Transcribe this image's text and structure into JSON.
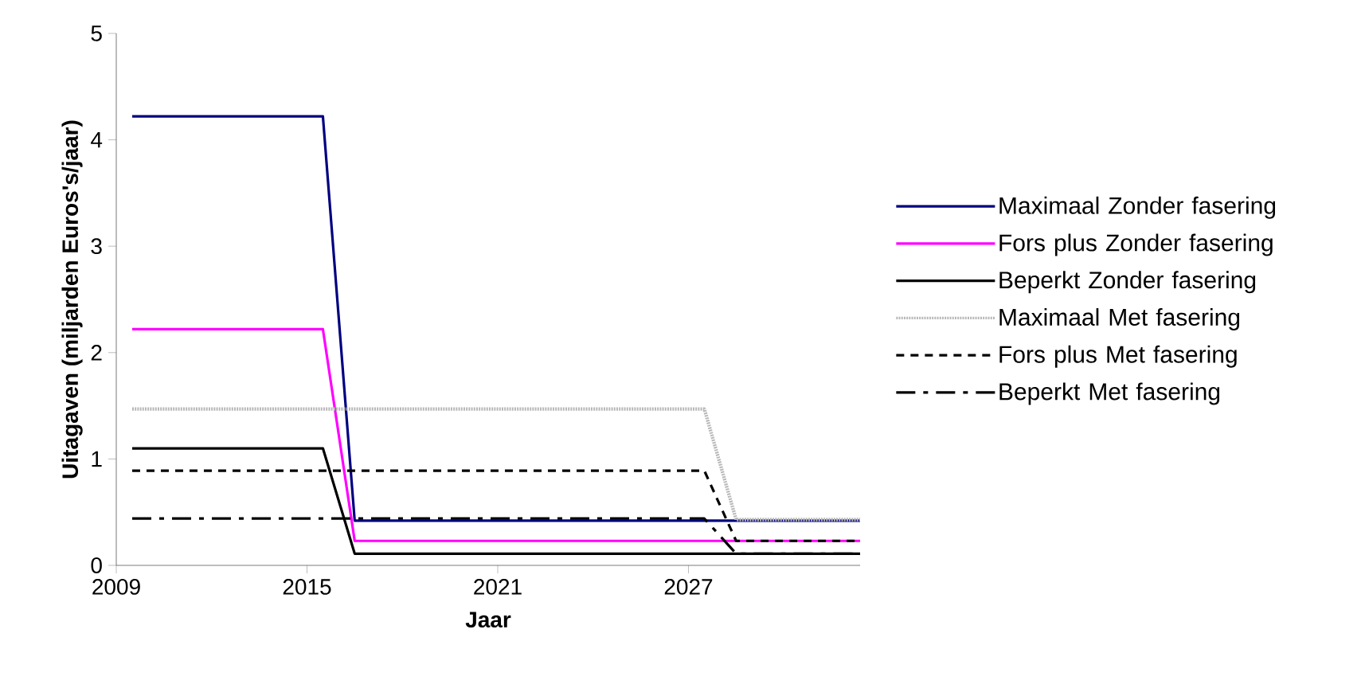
{
  "chart_data": {
    "type": "line",
    "xlabel": "Jaar",
    "ylabel": "Uitagaven (miljarden Euros's/jaar)",
    "xlim": [
      2009,
      2032.4
    ],
    "xticks": [
      2009,
      2015,
      2021,
      2027
    ],
    "ylim": [
      0,
      5
    ],
    "yticks": [
      0,
      1,
      2,
      3,
      4,
      5
    ],
    "grid": false,
    "legend": "right",
    "marker": "none",
    "series": [
      {
        "name": "Maximaal Zonder fasering",
        "color": "#000080",
        "line_style": "solid",
        "x": [
          2009.5,
          2015.5,
          2016.5,
          2032.4
        ],
        "values": [
          4.22,
          4.22,
          0.42,
          0.42
        ]
      },
      {
        "name": "Fors plus Zonder fasering",
        "color": "#ff00ff",
        "line_style": "solid",
        "x": [
          2009.5,
          2015.5,
          2016.5,
          2032.4
        ],
        "values": [
          2.22,
          2.22,
          0.23,
          0.23
        ]
      },
      {
        "name": "Beperkt Zonder fasering",
        "color": "#000000",
        "line_style": "solid",
        "x": [
          2009.5,
          2015.5,
          2016.5,
          2032.4
        ],
        "values": [
          1.1,
          1.1,
          0.11,
          0.11
        ]
      },
      {
        "name": "Maximaal Met fasering",
        "color": "#b8b8b8",
        "line_style": "dotted",
        "x": [
          2009.5,
          2027.5,
          2028.5,
          2032.4
        ],
        "values": [
          1.47,
          1.47,
          0.43,
          0.43
        ]
      },
      {
        "name": "Fors plus Met fasering",
        "color": "#000000",
        "line_style": "dashed",
        "x": [
          2009.5,
          2027.5,
          2028.5,
          2032.4
        ],
        "values": [
          0.89,
          0.89,
          0.23,
          0.23
        ]
      },
      {
        "name": "Beperkt Met fasering",
        "color": "#000000",
        "line_style": "dashdot",
        "x": [
          2009.5,
          2027.5,
          2028.5,
          2032.4
        ],
        "values": [
          0.44,
          0.44,
          0.11,
          0.11
        ]
      }
    ]
  }
}
